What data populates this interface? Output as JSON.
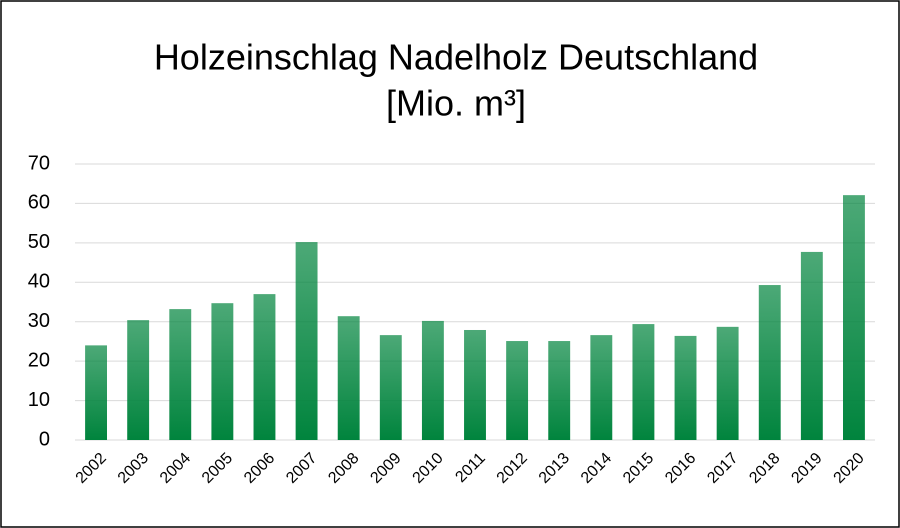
{
  "chart_data": {
    "type": "bar",
    "title": "Holzeinschlag Nadelholz Deutschland",
    "subtitle": "[Mio. m³]",
    "categories": [
      "2002",
      "2003",
      "2004",
      "2005",
      "2006",
      "2007",
      "2008",
      "2009",
      "2010",
      "2011",
      "2012",
      "2013",
      "2014",
      "2015",
      "2016",
      "2017",
      "2018",
      "2019",
      "2020"
    ],
    "values": [
      24,
      30.4,
      33.2,
      34.7,
      37,
      50.2,
      31.4,
      26.6,
      30.2,
      27.9,
      25.1,
      25.1,
      26.6,
      29.4,
      26.4,
      28.7,
      39.3,
      47.7,
      62.1
    ],
    "color": "#00843d",
    "ylim": [
      0,
      70
    ],
    "yticks": [
      0,
      10,
      20,
      30,
      40,
      50,
      60,
      70
    ],
    "grid": true
  }
}
